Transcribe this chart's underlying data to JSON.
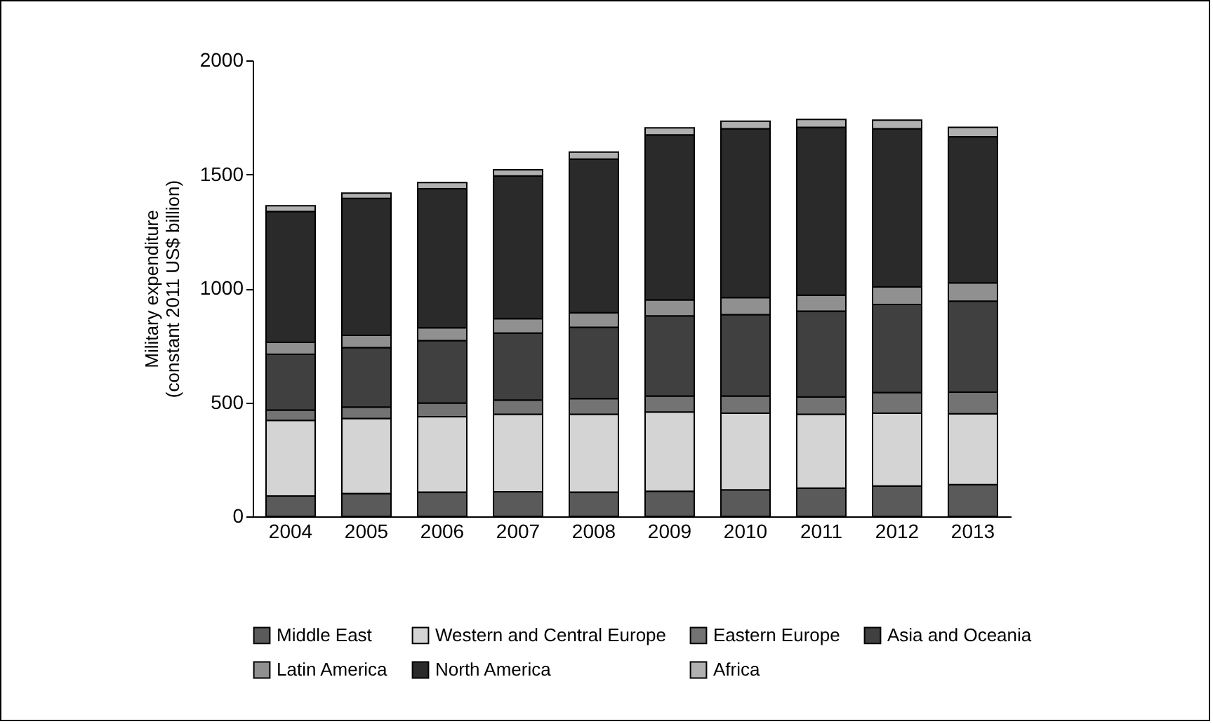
{
  "chart_data": {
    "type": "bar",
    "stacked": true,
    "ylabel": "Military expenditure\n(constant 2011 US$ billion)",
    "categories": [
      "2004",
      "2005",
      "2006",
      "2007",
      "2008",
      "2009",
      "2010",
      "2011",
      "2012",
      "2013"
    ],
    "series": [
      {
        "name": "Middle East",
        "color": "#5a5a5a",
        "values": [
          89,
          100,
          106,
          108,
          106,
          110,
          116,
          124,
          133,
          139
        ]
      },
      {
        "name": "Western and Central Europe",
        "color": "#d4d4d4",
        "values": [
          332,
          329,
          331,
          340,
          342,
          348,
          336,
          324,
          319,
          311
        ]
      },
      {
        "name": "Eastern Europe",
        "color": "#737373",
        "values": [
          45,
          50,
          60,
          62,
          68,
          70,
          76,
          76,
          91,
          95
        ]
      },
      {
        "name": "Asia and Oceania",
        "color": "#404040",
        "values": [
          245,
          261,
          274,
          294,
          313,
          351,
          357,
          376,
          386,
          399
        ]
      },
      {
        "name": "Latin America",
        "color": "#909090",
        "values": [
          52,
          54,
          56,
          63,
          64,
          70,
          74,
          70,
          77,
          80
        ]
      },
      {
        "name": "North America",
        "color": "#2a2a2a",
        "values": [
          574,
          601,
          610,
          626,
          674,
          724,
          741,
          736,
          694,
          641
        ]
      },
      {
        "name": "Africa",
        "color": "#b0b0b0",
        "values": [
          25,
          23,
          27,
          27,
          31,
          31,
          33,
          35,
          38,
          41
        ]
      }
    ],
    "ylim": [
      0,
      2000
    ],
    "yticks": [
      0,
      500,
      1000,
      1500,
      2000
    ],
    "grid": false,
    "legend": "bottom"
  }
}
